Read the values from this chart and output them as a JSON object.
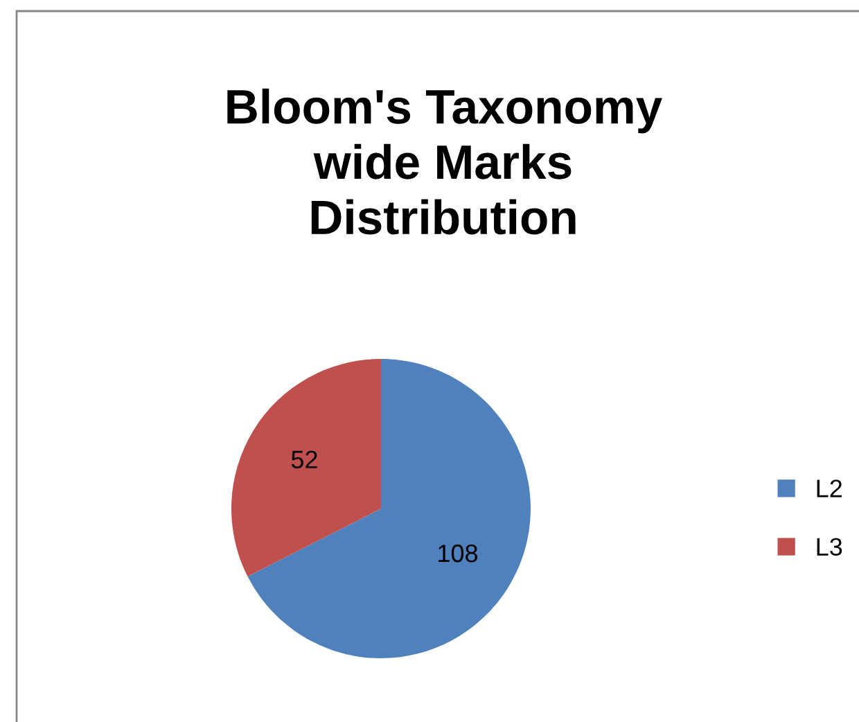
{
  "chart_data": {
    "type": "pie",
    "title": "Bloom's Taxonomy\nwide Marks\nDistribution",
    "categories": [
      "L2",
      "L3"
    ],
    "values": [
      108,
      52
    ],
    "colors": [
      "#4f81bd",
      "#c0504d"
    ],
    "data_labels": true,
    "legend": "right"
  }
}
